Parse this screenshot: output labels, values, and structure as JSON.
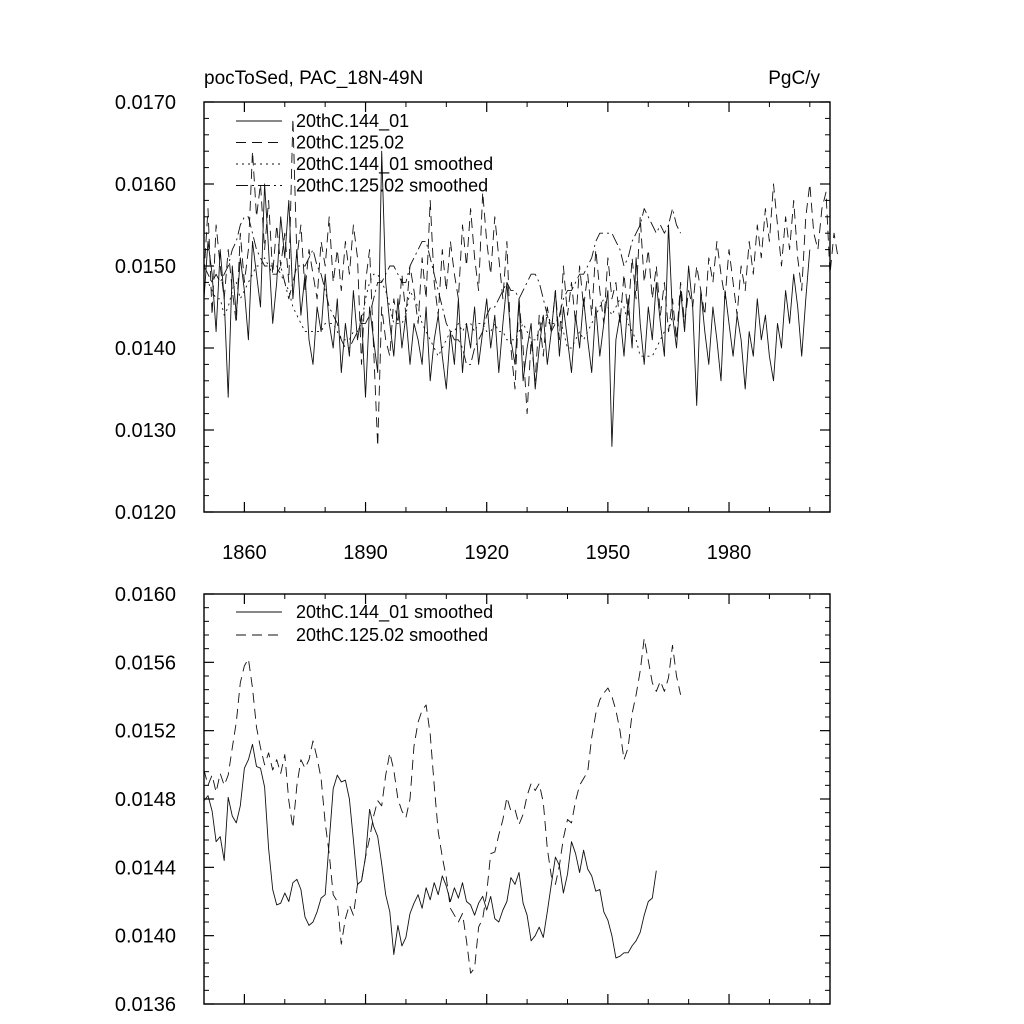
{
  "chart_data": [
    {
      "type": "line",
      "title": "pocToSed, PAC_18N-49N",
      "units_label": "PgC/y",
      "xlim": [
        1850,
        2005
      ],
      "ylim": [
        0.012,
        0.017
      ],
      "yticks": [
        0.012,
        0.013,
        0.014,
        0.015,
        0.016,
        0.017
      ],
      "ytick_labels": [
        "0.0120",
        "0.0130",
        "0.0140",
        "0.0150",
        "0.0160",
        "0.0170"
      ],
      "xticks": [
        1860,
        1890,
        1920,
        1950,
        1980
      ],
      "xtick_labels": [
        "1860",
        "1890",
        "1920",
        "1950",
        "1980"
      ],
      "legend": [
        "20thC.144_01",
        "20thC.125.02",
        "20thC.144_01 smoothed",
        "20thC.125.02 smoothed"
      ],
      "series": [
        {
          "name": "20thC.144_01",
          "style": "solid",
          "x_start": 1850,
          "values": [
            0.0146,
            0.0153,
            0.0149,
            0.0142,
            0.0152,
            0.0146,
            0.0134,
            0.015,
            0.0144,
            0.0151,
            0.0147,
            0.0141,
            0.0153,
            0.0149,
            0.0145,
            0.016,
            0.0152,
            0.0143,
            0.0148,
            0.0156,
            0.0151,
            0.0158,
            0.0146,
            0.0152,
            0.0144,
            0.0149,
            0.0141,
            0.0138,
            0.0145,
            0.0142,
            0.0149,
            0.0143,
            0.014,
            0.0146,
            0.0137,
            0.0143,
            0.0139,
            0.0147,
            0.0141,
            0.0144,
            0.0134,
            0.0145,
            0.0141,
            0.0137,
            0.0164,
            0.0148,
            0.0143,
            0.0139,
            0.0146,
            0.014,
            0.0144,
            0.0138,
            0.0143,
            0.0141,
            0.0138,
            0.0145,
            0.0136,
            0.0141,
            0.0144,
            0.0139,
            0.0135,
            0.0142,
            0.0138,
            0.0146,
            0.0137,
            0.0143,
            0.014,
            0.0145,
            0.0138,
            0.0142,
            0.0146,
            0.014,
            0.0144,
            0.0137,
            0.0143,
            0.0148,
            0.0141,
            0.0138,
            0.0146,
            0.0136,
            0.014,
            0.0143,
            0.0135,
            0.014,
            0.0144,
            0.0138,
            0.0142,
            0.0147,
            0.0139,
            0.0145,
            0.0141,
            0.0137,
            0.0144,
            0.014,
            0.0146,
            0.0141,
            0.0137,
            0.0145,
            0.0139,
            0.0143,
            0.0147,
            0.0128,
            0.0141,
            0.0144,
            0.0139,
            0.0146,
            0.014,
            0.0151,
            0.0143,
            0.0138,
            0.0145,
            0.0141,
            0.0148,
            0.0143,
            0.0139,
            0.0155,
            0.0144,
            0.014,
            0.0147,
            0.0142,
            0.015,
            0.0145,
            0.0133,
            0.0147,
            0.0142,
            0.0138,
            0.0145,
            0.0141,
            0.0136,
            0.0147,
            0.0143,
            0.0139,
            0.0144,
            0.0141,
            0.0135,
            0.0142,
            0.0139,
            0.0146,
            0.0141,
            0.0144,
            0.0139,
            0.0136,
            0.0143,
            0.014,
            0.0147,
            0.0143,
            0.0149,
            0.0145,
            0.0139,
            0.0146,
            0.0152
          ]
        },
        {
          "name": "20thC.125.02",
          "style": "dashed",
          "x_start": 1850,
          "values": [
            0.0149,
            0.0157,
            0.0144,
            0.0155,
            0.015,
            0.0146,
            0.0152,
            0.0147,
            0.0143,
            0.0154,
            0.0148,
            0.0152,
            0.0164,
            0.0156,
            0.016,
            0.0152,
            0.0158,
            0.0149,
            0.0155,
            0.015,
            0.0154,
            0.0148,
            0.0168,
            0.0151,
            0.0155,
            0.0147,
            0.0152,
            0.0149,
            0.0146,
            0.0153,
            0.015,
            0.0156,
            0.0148,
            0.0152,
            0.0147,
            0.0153,
            0.0149,
            0.0155,
            0.0151,
            0.0138,
            0.0148,
            0.0152,
            0.014,
            0.0128,
            0.0145,
            0.0141,
            0.0139,
            0.0146,
            0.0143,
            0.0149,
            0.0144,
            0.015,
            0.0147,
            0.0143,
            0.0151,
            0.0146,
            0.0158,
            0.0148,
            0.0144,
            0.0152,
            0.0147,
            0.0153,
            0.0149,
            0.0146,
            0.0155,
            0.015,
            0.0157,
            0.0151,
            0.0147,
            0.0159,
            0.0153,
            0.0149,
            0.0156,
            0.0151,
            0.0146,
            0.0153,
            0.014,
            0.0135,
            0.0146,
            0.014,
            0.0132,
            0.0141,
            0.0136,
            0.0144,
            0.0139,
            0.0145,
            0.0142,
            0.0147,
            0.0141,
            0.015,
            0.0144,
            0.0148,
            0.0143,
            0.015,
            0.0145,
            0.0149,
            0.0144,
            0.0152,
            0.0147,
            0.0143,
            0.0151,
            0.0146,
            0.0148,
            0.0143,
            0.0149,
            0.0144,
            0.0151,
            0.0146,
            0.0156,
            0.0148,
            0.0152,
            0.0146,
            0.015,
            0.0144,
            0.0148,
            0.0142,
            0.0146,
            0.0141,
            0.0148,
            0.0143,
            0.0147,
            0.0145,
            0.015,
            0.0147,
            0.0144,
            0.0151,
            0.0148,
            0.0153,
            0.0149,
            0.0146,
            0.0152,
            0.0148,
            0.0144,
            0.015,
            0.0147,
            0.0153,
            0.0149,
            0.0155,
            0.0151,
            0.0157,
            0.0153,
            0.016,
            0.0155,
            0.015,
            0.0156,
            0.0152,
            0.0158,
            0.0151,
            0.0147,
            0.0156,
            0.016,
            0.0154,
            0.0152,
            0.0157,
            0.0159,
            0.0149,
            0.0154,
            0.0151
          ]
        },
        {
          "name": "20thC.144_01 smoothed",
          "style": "dotted",
          "x_start": 1850,
          "values": [
            0.0148,
            0.0148,
            0.0147,
            0.0146,
            0.0146,
            0.0144,
            0.0145,
            0.0147,
            0.0148,
            0.0146,
            0.0147,
            0.0148,
            0.0149,
            0.015,
            0.015,
            0.0151,
            0.015,
            0.015,
            0.015,
            0.0149,
            0.0148,
            0.0147,
            0.0145,
            0.0144,
            0.0143,
            0.0142,
            0.0142,
            0.0142,
            0.0142,
            0.0142,
            0.0143,
            0.0143,
            0.0143,
            0.0142,
            0.0141,
            0.0141,
            0.0141,
            0.0142,
            0.0142,
            0.0143,
            0.0146,
            0.0148,
            0.0149,
            0.0149,
            0.0148,
            0.0147,
            0.0145,
            0.0143,
            0.0143,
            0.0143,
            0.0144,
            0.0147,
            0.0146,
            0.0145,
            0.0143,
            0.0142,
            0.0141,
            0.014,
            0.0139,
            0.014,
            0.0141,
            0.0142,
            0.0142,
            0.0143,
            0.0142,
            0.0143,
            0.0143,
            0.0142,
            0.0143,
            0.0143,
            0.0142,
            0.0142,
            0.0143,
            0.0142,
            0.0142,
            0.0141,
            0.0141,
            0.0141,
            0.0142,
            0.0143,
            0.0142,
            0.0141,
            0.0141,
            0.0142,
            0.0144,
            0.0144,
            0.0143,
            0.0143,
            0.0144,
            0.0142,
            0.014,
            0.014,
            0.0141,
            0.0142,
            0.0141,
            0.0142,
            0.0143,
            0.0144,
            0.0145,
            0.0146,
            0.0145,
            0.0144,
            0.0145,
            0.0146,
            0.0145,
            0.0143,
            0.0142,
            0.0141,
            0.0139,
            0.0139,
            0.0139,
            0.0139,
            0.014,
            0.0141,
            0.0142,
            0.0142,
            0.0144
          ]
        },
        {
          "name": "20thC.125.02 smoothed",
          "style": "dashdot",
          "x_start": 1850,
          "values": [
            0.015,
            0.0149,
            0.0148,
            0.0149,
            0.0148,
            0.0149,
            0.015,
            0.0152,
            0.0153,
            0.0155,
            0.0156,
            0.0156,
            0.0154,
            0.0152,
            0.0151,
            0.015,
            0.015,
            0.0149,
            0.0149,
            0.015,
            0.0148,
            0.0146,
            0.0148,
            0.015,
            0.015,
            0.015,
            0.0151,
            0.0152,
            0.015,
            0.0149,
            0.0147,
            0.0145,
            0.0144,
            0.0143,
            0.0141,
            0.014,
            0.014,
            0.0141,
            0.0142,
            0.0143,
            0.0143,
            0.0144,
            0.0146,
            0.0148,
            0.0148,
            0.0149,
            0.015,
            0.015,
            0.0149,
            0.0148,
            0.0148,
            0.015,
            0.0151,
            0.0152,
            0.0153,
            0.0153,
            0.0151,
            0.0149,
            0.0147,
            0.0145,
            0.0143,
            0.0142,
            0.0141,
            0.0141,
            0.014,
            0.0138,
            0.0138,
            0.014,
            0.0141,
            0.0142,
            0.0144,
            0.0145,
            0.0145,
            0.0146,
            0.0147,
            0.0148,
            0.0147,
            0.0147,
            0.0146,
            0.0147,
            0.0148,
            0.0149,
            0.0149,
            0.0148,
            0.0146,
            0.0144,
            0.0142,
            0.0143,
            0.0144,
            0.0146,
            0.0147,
            0.0147,
            0.0148,
            0.0149,
            0.0149,
            0.015,
            0.0151,
            0.0153,
            0.0154,
            0.0154,
            0.0154,
            0.0154,
            0.0153,
            0.0152,
            0.015,
            0.0151,
            0.0153,
            0.0154,
            0.0155,
            0.0157,
            0.0156,
            0.0155,
            0.0154,
            0.0155,
            0.0154,
            0.0155,
            0.0157,
            0.0155,
            0.0154
          ]
        }
      ]
    },
    {
      "type": "line",
      "title": "",
      "xlim": [
        1850,
        2005
      ],
      "ylim": [
        0.0136,
        0.016
      ],
      "yticks": [
        0.0136,
        0.014,
        0.0144,
        0.0148,
        0.0152,
        0.0156,
        0.016
      ],
      "ytick_labels": [
        "0.0136",
        "0.0140",
        "0.0144",
        "0.0148",
        "0.0152",
        "0.0156",
        "0.0160"
      ],
      "xticks": [
        1860,
        1890,
        1920,
        1950,
        1980
      ],
      "legend": [
        "20thC.144_01 smoothed",
        "20thC.125.02 smoothed"
      ],
      "series": [
        {
          "name": "20thC.144_01 smoothed",
          "style": "solid",
          "x_start": 1850,
          "values": [
            0.01479,
            0.01482,
            0.01473,
            0.01455,
            0.01458,
            0.01444,
            0.01481,
            0.0147,
            0.01466,
            0.01476,
            0.01498,
            0.01503,
            0.01512,
            0.01499,
            0.01498,
            0.01487,
            0.01451,
            0.01427,
            0.01418,
            0.01419,
            0.01425,
            0.0142,
            0.01431,
            0.01433,
            0.01427,
            0.01411,
            0.01406,
            0.01408,
            0.01414,
            0.01422,
            0.01424,
            0.01455,
            0.01486,
            0.01494,
            0.0149,
            0.01491,
            0.0148,
            0.01456,
            0.0143,
            0.01432,
            0.01446,
            0.01474,
            0.01464,
            0.01458,
            0.01442,
            0.01424,
            0.01414,
            0.01389,
            0.01406,
            0.01394,
            0.01399,
            0.01413,
            0.01419,
            0.01424,
            0.01416,
            0.01428,
            0.01421,
            0.01431,
            0.01424,
            0.01435,
            0.01429,
            0.0142,
            0.01428,
            0.01422,
            0.01431,
            0.0142,
            0.01418,
            0.01412,
            0.01419,
            0.01423,
            0.01415,
            0.01423,
            0.0141,
            0.01408,
            0.01415,
            0.0142,
            0.01434,
            0.0143,
            0.01437,
            0.01419,
            0.01412,
            0.01397,
            0.014,
            0.01405,
            0.01399,
            0.01414,
            0.0143,
            0.01446,
            0.01441,
            0.01425,
            0.01436,
            0.01455,
            0.01448,
            0.01437,
            0.0145,
            0.01439,
            0.01435,
            0.01426,
            0.01427,
            0.01414,
            0.01409,
            0.014,
            0.01387,
            0.01388,
            0.0139,
            0.0139,
            0.01394,
            0.01397,
            0.01402,
            0.01412,
            0.0142,
            0.01422,
            0.01438
          ]
        },
        {
          "name": "20thC.125.02 smoothed",
          "style": "dashed",
          "x_start": 1850,
          "values": [
            0.01497,
            0.01488,
            0.01494,
            0.01484,
            0.01495,
            0.01488,
            0.01494,
            0.0151,
            0.01525,
            0.01548,
            0.01558,
            0.01562,
            0.01545,
            0.01522,
            0.0151,
            0.015,
            0.01507,
            0.01497,
            0.01503,
            0.01495,
            0.01506,
            0.01479,
            0.01463,
            0.01488,
            0.01503,
            0.01498,
            0.01503,
            0.01514,
            0.01504,
            0.01492,
            0.01466,
            0.01448,
            0.01424,
            0.0142,
            0.01395,
            0.0141,
            0.01418,
            0.01412,
            0.0143,
            0.01432,
            0.01446,
            0.01457,
            0.0147,
            0.01479,
            0.01476,
            0.01494,
            0.01507,
            0.01497,
            0.0148,
            0.01473,
            0.01469,
            0.0148,
            0.01511,
            0.01525,
            0.01532,
            0.01535,
            0.01518,
            0.01488,
            0.01461,
            0.01446,
            0.01434,
            0.01416,
            0.01412,
            0.01408,
            0.01413,
            0.01397,
            0.01378,
            0.01381,
            0.01405,
            0.0141,
            0.01425,
            0.01448,
            0.01449,
            0.01459,
            0.01468,
            0.01481,
            0.01473,
            0.01474,
            0.01465,
            0.01471,
            0.01482,
            0.01489,
            0.01485,
            0.01489,
            0.01478,
            0.01451,
            0.01435,
            0.0143,
            0.01441,
            0.01457,
            0.01468,
            0.01466,
            0.01479,
            0.01488,
            0.01492,
            0.01496,
            0.01516,
            0.0153,
            0.01538,
            0.01542,
            0.01545,
            0.0154,
            0.01532,
            0.0152,
            0.01503,
            0.0151,
            0.0153,
            0.01541,
            0.01555,
            0.01574,
            0.01561,
            0.01548,
            0.01543,
            0.01549,
            0.01543,
            0.01551,
            0.0157,
            0.01552,
            0.01541
          ]
        }
      ]
    }
  ]
}
